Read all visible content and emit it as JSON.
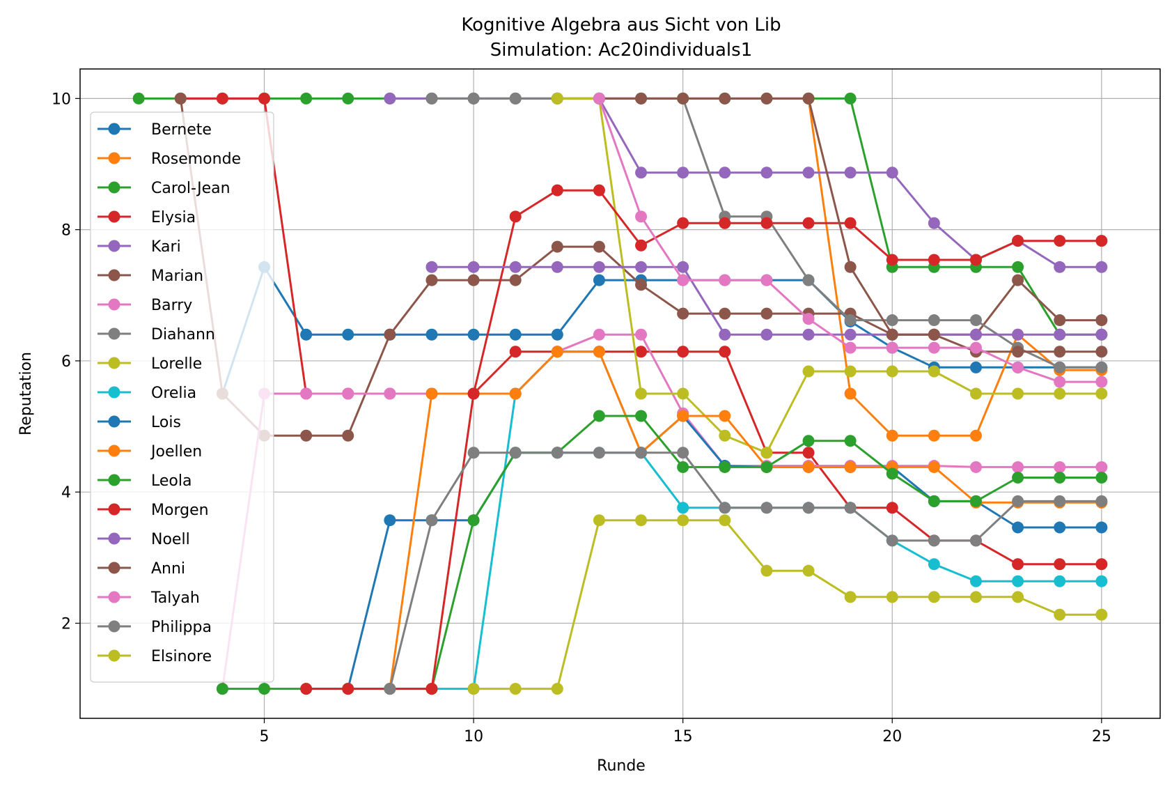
{
  "chart_data": {
    "type": "line",
    "title": "Kognitive Algebra aus Sicht von Lib",
    "subtitle": "Simulation: Ac20individuals1",
    "xlabel": "Runde",
    "ylabel": "Reputation",
    "xlim": [
      0.6,
      26.4
    ],
    "ylim": [
      0.55,
      10.45
    ],
    "xticks": [
      5,
      10,
      15,
      20,
      25
    ],
    "yticks": [
      2,
      4,
      6,
      8,
      10
    ],
    "grid": true,
    "legend_position": "upper-left",
    "series": [
      {
        "name": "Bernete",
        "color": "#1f77b4",
        "x": [
          4,
          5,
          6,
          7,
          8,
          9,
          10,
          11,
          12,
          13,
          14,
          15,
          16,
          17,
          18,
          19,
          20,
          21,
          22,
          23,
          24,
          25
        ],
        "y": [
          5.5,
          7.43,
          6.4,
          6.4,
          6.4,
          6.4,
          6.4,
          6.4,
          6.4,
          7.23,
          7.23,
          7.23,
          7.23,
          7.23,
          7.23,
          6.6,
          6.2,
          5.9,
          5.9,
          5.9,
          5.9,
          5.9
        ]
      },
      {
        "name": "Rosemonde",
        "color": "#ff7f0e",
        "x": [
          18,
          19,
          20,
          21,
          22,
          23,
          24,
          25
        ],
        "y": [
          10,
          5.5,
          4.86,
          4.86,
          4.86,
          6.4,
          5.86,
          5.86
        ]
      },
      {
        "name": "Carol-Jean",
        "color": "#2ca02c",
        "x": [
          2,
          3,
          4,
          5,
          6,
          7,
          8,
          9,
          10,
          11,
          12,
          13,
          14,
          15,
          16,
          17,
          18,
          19,
          20,
          21,
          22,
          23,
          24,
          25
        ],
        "y": [
          10,
          10,
          10,
          10,
          10,
          10,
          10,
          10,
          10,
          10,
          10,
          10,
          10,
          10,
          10,
          10,
          10,
          10,
          7.43,
          7.43,
          7.43,
          7.43,
          6.4,
          6.4
        ]
      },
      {
        "name": "Elysia",
        "color": "#d62728",
        "x": [
          3,
          4,
          5,
          6,
          7,
          8,
          9,
          10,
          11,
          12,
          13,
          14,
          15,
          16,
          17,
          18,
          19,
          20,
          21,
          22,
          23,
          24,
          25
        ],
        "y": [
          10,
          10,
          10,
          5.5,
          5.5,
          5.5,
          5.5,
          5.5,
          6.14,
          6.14,
          6.14,
          6.14,
          6.14,
          6.14,
          4.6,
          4.6,
          3.76,
          3.76,
          3.26,
          3.26,
          2.9,
          2.9,
          2.9
        ]
      },
      {
        "name": "Kari",
        "color": "#9467bd",
        "x": [
          8,
          9,
          10,
          11,
          12,
          13,
          14,
          15,
          16,
          17,
          18,
          19,
          20,
          21,
          22,
          23,
          24,
          25
        ],
        "y": [
          10,
          10,
          10,
          10,
          10,
          10,
          8.87,
          8.87,
          8.87,
          8.87,
          8.87,
          8.87,
          8.87,
          8.1,
          7.54,
          7.83,
          7.43,
          7.43
        ]
      },
      {
        "name": "Marian",
        "color": "#8c564b",
        "x": [
          3,
          4,
          5,
          6,
          7,
          8,
          9,
          10,
          11,
          12,
          13,
          14,
          15,
          16,
          17,
          18,
          19,
          20,
          21,
          22,
          23,
          24,
          25
        ],
        "y": [
          10,
          5.5,
          4.86,
          4.86,
          4.86,
          6.4,
          7.23,
          7.23,
          7.23,
          7.74,
          7.74,
          7.16,
          6.72,
          6.72,
          6.72,
          6.72,
          6.72,
          6.4,
          6.4,
          6.4,
          7.23,
          6.62,
          6.62
        ]
      },
      {
        "name": "Barry",
        "color": "#e377c2",
        "x": [
          4,
          5,
          6,
          7,
          8,
          9,
          10,
          11,
          12,
          13,
          14,
          15,
          16,
          17,
          18,
          19,
          20,
          21,
          22,
          23,
          24,
          25
        ],
        "y": [
          1,
          5.5,
          5.5,
          5.5,
          5.5,
          5.5,
          5.5,
          5.5,
          6.14,
          6.4,
          6.4,
          5.2,
          4.4,
          4.4,
          4.4,
          4.4,
          4.4,
          4.4,
          4.38,
          4.38,
          4.38,
          4.38
        ]
      },
      {
        "name": "Diahann",
        "color": "#7f7f7f",
        "x": [
          9,
          10,
          11,
          12,
          13,
          14,
          15,
          16,
          17,
          18,
          19,
          20,
          21,
          22,
          23,
          24,
          25
        ],
        "y": [
          10,
          10,
          10,
          10,
          10,
          10,
          10,
          8.2,
          8.2,
          7.23,
          6.62,
          6.62,
          6.62,
          6.62,
          6.2,
          5.9,
          5.9
        ]
      },
      {
        "name": "Lorelle",
        "color": "#bcbd22",
        "x": [
          12,
          13,
          14,
          15,
          16,
          17,
          18,
          19,
          20,
          21,
          22,
          23,
          24,
          25
        ],
        "y": [
          10,
          10,
          5.5,
          5.5,
          4.86,
          4.6,
          5.84,
          5.84,
          5.84,
          5.84,
          5.5,
          5.5,
          5.5,
          5.5
        ]
      },
      {
        "name": "Orelia",
        "color": "#17becf",
        "x": [
          9,
          10,
          11,
          12,
          13,
          14,
          15,
          16,
          17,
          18,
          19,
          20,
          21,
          22,
          23,
          24,
          25
        ],
        "y": [
          1,
          1,
          5.5,
          6.14,
          6.14,
          4.6,
          3.76,
          3.76,
          3.76,
          3.76,
          3.76,
          3.26,
          2.9,
          2.64,
          2.64,
          2.64,
          2.64
        ]
      },
      {
        "name": "Lois",
        "color": "#1f77b4",
        "x": [
          7,
          8,
          9,
          10,
          11,
          12,
          13,
          14,
          15,
          16,
          17,
          18,
          19,
          20,
          21,
          22,
          23,
          24,
          25
        ],
        "y": [
          1,
          3.57,
          3.57,
          3.57,
          4.6,
          4.6,
          4.6,
          4.6,
          5.16,
          4.4,
          4.38,
          4.38,
          4.38,
          4.38,
          3.86,
          3.86,
          3.46,
          3.46,
          3.46
        ]
      },
      {
        "name": "Joellen",
        "color": "#ff7f0e",
        "x": [
          8,
          9,
          10,
          11,
          12,
          13,
          14,
          15,
          16,
          17,
          18,
          19,
          20,
          21,
          22,
          23,
          24,
          25
        ],
        "y": [
          1,
          5.5,
          5.5,
          5.5,
          6.14,
          6.14,
          4.6,
          5.16,
          5.16,
          4.38,
          4.38,
          4.38,
          4.38,
          4.38,
          3.84,
          3.84,
          3.84,
          3.84
        ]
      },
      {
        "name": "Leola",
        "color": "#2ca02c",
        "x": [
          4,
          5,
          6,
          7,
          8,
          9,
          10,
          11,
          12,
          13,
          14,
          15,
          16,
          17,
          18,
          19,
          20,
          21,
          22,
          23,
          24,
          25
        ],
        "y": [
          1,
          1,
          1,
          1,
          1,
          1,
          3.57,
          4.6,
          4.6,
          5.16,
          5.16,
          4.38,
          4.38,
          4.38,
          4.78,
          4.78,
          4.28,
          3.86,
          3.86,
          4.22,
          4.22,
          4.22
        ]
      },
      {
        "name": "Morgen",
        "color": "#d62728",
        "x": [
          6,
          7,
          8,
          9,
          10,
          11,
          12,
          13,
          14,
          15,
          16,
          17,
          18,
          19,
          20,
          21,
          22,
          23,
          24,
          25
        ],
        "y": [
          1,
          1,
          1,
          1,
          5.5,
          8.2,
          8.6,
          8.6,
          7.76,
          8.1,
          8.1,
          8.1,
          8.1,
          8.1,
          7.54,
          7.54,
          7.54,
          7.83,
          7.83,
          7.83
        ]
      },
      {
        "name": "Noell",
        "color": "#9467bd",
        "x": [
          9,
          10,
          11,
          12,
          13,
          14,
          15,
          16,
          17,
          18,
          19,
          20,
          21,
          22,
          23,
          24,
          25
        ],
        "y": [
          7.43,
          7.43,
          7.43,
          7.43,
          7.43,
          7.43,
          7.43,
          6.4,
          6.4,
          6.4,
          6.4,
          6.4,
          6.4,
          6.4,
          6.4,
          6.4,
          6.4
        ]
      },
      {
        "name": "Anni",
        "color": "#8c564b",
        "x": [
          13,
          14,
          15,
          16,
          17,
          18,
          19,
          20,
          21,
          22,
          23,
          24,
          25
        ],
        "y": [
          10,
          10,
          10,
          10,
          10,
          10,
          7.43,
          6.4,
          6.4,
          6.14,
          6.14,
          6.14,
          6.14
        ]
      },
      {
        "name": "Talyah",
        "color": "#e377c2",
        "x": [
          13,
          14,
          15,
          16,
          17,
          18,
          19,
          20,
          21,
          22,
          23,
          24,
          25
        ],
        "y": [
          10,
          8.2,
          7.23,
          7.23,
          7.23,
          6.64,
          6.2,
          6.2,
          6.2,
          6.2,
          5.9,
          5.68,
          5.68
        ]
      },
      {
        "name": "Philippa",
        "color": "#7f7f7f",
        "x": [
          8,
          9,
          10,
          11,
          12,
          13,
          14,
          15,
          16,
          17,
          18,
          19,
          20,
          21,
          22,
          23,
          24,
          25
        ],
        "y": [
          1,
          3.57,
          4.6,
          4.6,
          4.6,
          4.6,
          4.6,
          4.6,
          3.76,
          3.76,
          3.76,
          3.76,
          3.26,
          3.26,
          3.26,
          3.86,
          3.86,
          3.86
        ]
      },
      {
        "name": "Elsinore",
        "color": "#bcbd22",
        "x": [
          10,
          11,
          12,
          13,
          14,
          15,
          16,
          17,
          18,
          19,
          20,
          21,
          22,
          23,
          24,
          25
        ],
        "y": [
          1,
          1,
          1,
          3.57,
          3.57,
          3.57,
          3.57,
          2.8,
          2.8,
          2.4,
          2.4,
          2.4,
          2.4,
          2.4,
          2.13,
          2.13
        ]
      }
    ]
  }
}
